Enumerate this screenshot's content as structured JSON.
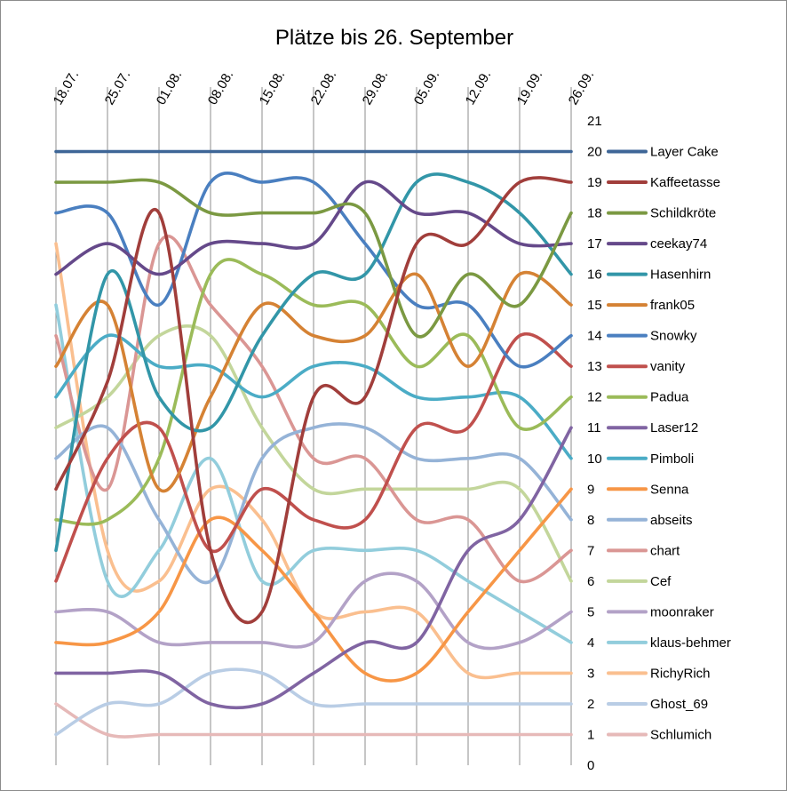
{
  "chart_data": {
    "type": "line",
    "title": "Plätze bis 26. September",
    "xlabel": "",
    "ylabel": "",
    "categories": [
      "18.07.",
      "25.07.",
      "01.08.",
      "08.08.",
      "15.08.",
      "22.08.",
      "29.08.",
      "05.09.",
      "12.09.",
      "19.09.",
      "26.09."
    ],
    "y_ticks": [
      "0",
      "1",
      "2",
      "3",
      "4",
      "5",
      "6",
      "7",
      "8",
      "9",
      "10",
      "11",
      "12",
      "13",
      "14",
      "15",
      "16",
      "17",
      "18",
      "19",
      "20",
      "21"
    ],
    "ylim": [
      0,
      21
    ],
    "y_axis_side": "right",
    "grid": "vertical lines at each date",
    "smooth": true,
    "legend_position": "right",
    "series": [
      {
        "name": "Layer Cake",
        "color": "#3e6697",
        "values": [
          20,
          20,
          20,
          20,
          20,
          20,
          20,
          20,
          20,
          20,
          20
        ]
      },
      {
        "name": "Kaffeetasse",
        "color": "#a13e3b",
        "values": [
          9,
          12.5,
          18,
          7,
          5,
          12,
          12,
          17,
          17,
          19,
          19
        ]
      },
      {
        "name": "Schildkröte",
        "color": "#7b9942",
        "values": [
          19,
          19,
          19,
          18,
          18,
          18,
          18,
          14,
          16,
          15,
          18
        ]
      },
      {
        "name": "ceekay74",
        "color": "#65498a",
        "values": [
          16,
          17,
          16,
          17,
          17,
          17,
          19,
          18,
          18,
          17,
          17
        ]
      },
      {
        "name": "Hasenhirn",
        "color": "#3296a8",
        "values": [
          7,
          16,
          12,
          11,
          14,
          16,
          16,
          19,
          19,
          18,
          16
        ]
      },
      {
        "name": "frank05",
        "color": "#d58234",
        "values": [
          13,
          15,
          9,
          12,
          15,
          14,
          14,
          16,
          13,
          16,
          15
        ]
      },
      {
        "name": "Snowky",
        "color": "#4a7fc0",
        "values": [
          18,
          18,
          15,
          19,
          19,
          19,
          17,
          15,
          15,
          13,
          14
        ]
      },
      {
        "name": "vanity",
        "color": "#c0504d",
        "values": [
          6,
          10,
          11,
          7,
          9,
          8,
          8,
          11,
          11,
          14,
          13
        ]
      },
      {
        "name": "Padua",
        "color": "#9bbb59",
        "values": [
          8,
          8,
          10,
          16,
          16,
          15,
          15,
          13,
          14,
          11,
          12
        ]
      },
      {
        "name": "Laser12",
        "color": "#8064a2",
        "values": [
          3,
          3,
          3,
          2,
          2,
          3,
          4,
          4,
          7,
          8,
          11
        ]
      },
      {
        "name": "Pimboli",
        "color": "#4bacc6",
        "values": [
          12,
          14,
          13,
          13,
          12,
          13,
          13,
          12,
          12,
          12,
          10
        ]
      },
      {
        "name": "Senna",
        "color": "#f79646",
        "values": [
          4,
          4,
          5,
          8,
          7,
          5,
          3,
          3,
          5,
          7,
          9
        ]
      },
      {
        "name": "abseits",
        "color": "#95b3d7",
        "values": [
          10,
          11,
          8,
          6,
          10,
          11,
          11,
          10,
          10,
          10,
          8
        ]
      },
      {
        "name": "chart",
        "color": "#da9694",
        "values": [
          14,
          9,
          17,
          15,
          13,
          10,
          10,
          8,
          8,
          6,
          7
        ]
      },
      {
        "name": "Cef",
        "color": "#c3d69b",
        "values": [
          11,
          12,
          14,
          14,
          11,
          9,
          9,
          9,
          9,
          9,
          6
        ]
      },
      {
        "name": "moonraker",
        "color": "#b3a2c7",
        "values": [
          5,
          5,
          4,
          4,
          4,
          4,
          6,
          6,
          4,
          4,
          5
        ]
      },
      {
        "name": "klaus-behmer",
        "color": "#92cddc",
        "values": [
          15,
          6,
          7,
          10,
          6,
          7,
          7,
          7,
          6,
          5,
          4
        ]
      },
      {
        "name": "RichyRich",
        "color": "#fabf8f",
        "values": [
          17,
          7,
          6,
          9,
          8,
          5,
          5,
          5,
          3,
          3,
          3
        ]
      },
      {
        "name": "Ghost_69",
        "color": "#b9cde5",
        "values": [
          1,
          2,
          2,
          3,
          3,
          2,
          2,
          2,
          2,
          2,
          2
        ]
      },
      {
        "name": "Schlumich",
        "color": "#e6b9b8",
        "values": [
          2,
          1,
          1,
          1,
          1,
          1,
          1,
          1,
          1,
          1,
          1
        ]
      }
    ]
  }
}
